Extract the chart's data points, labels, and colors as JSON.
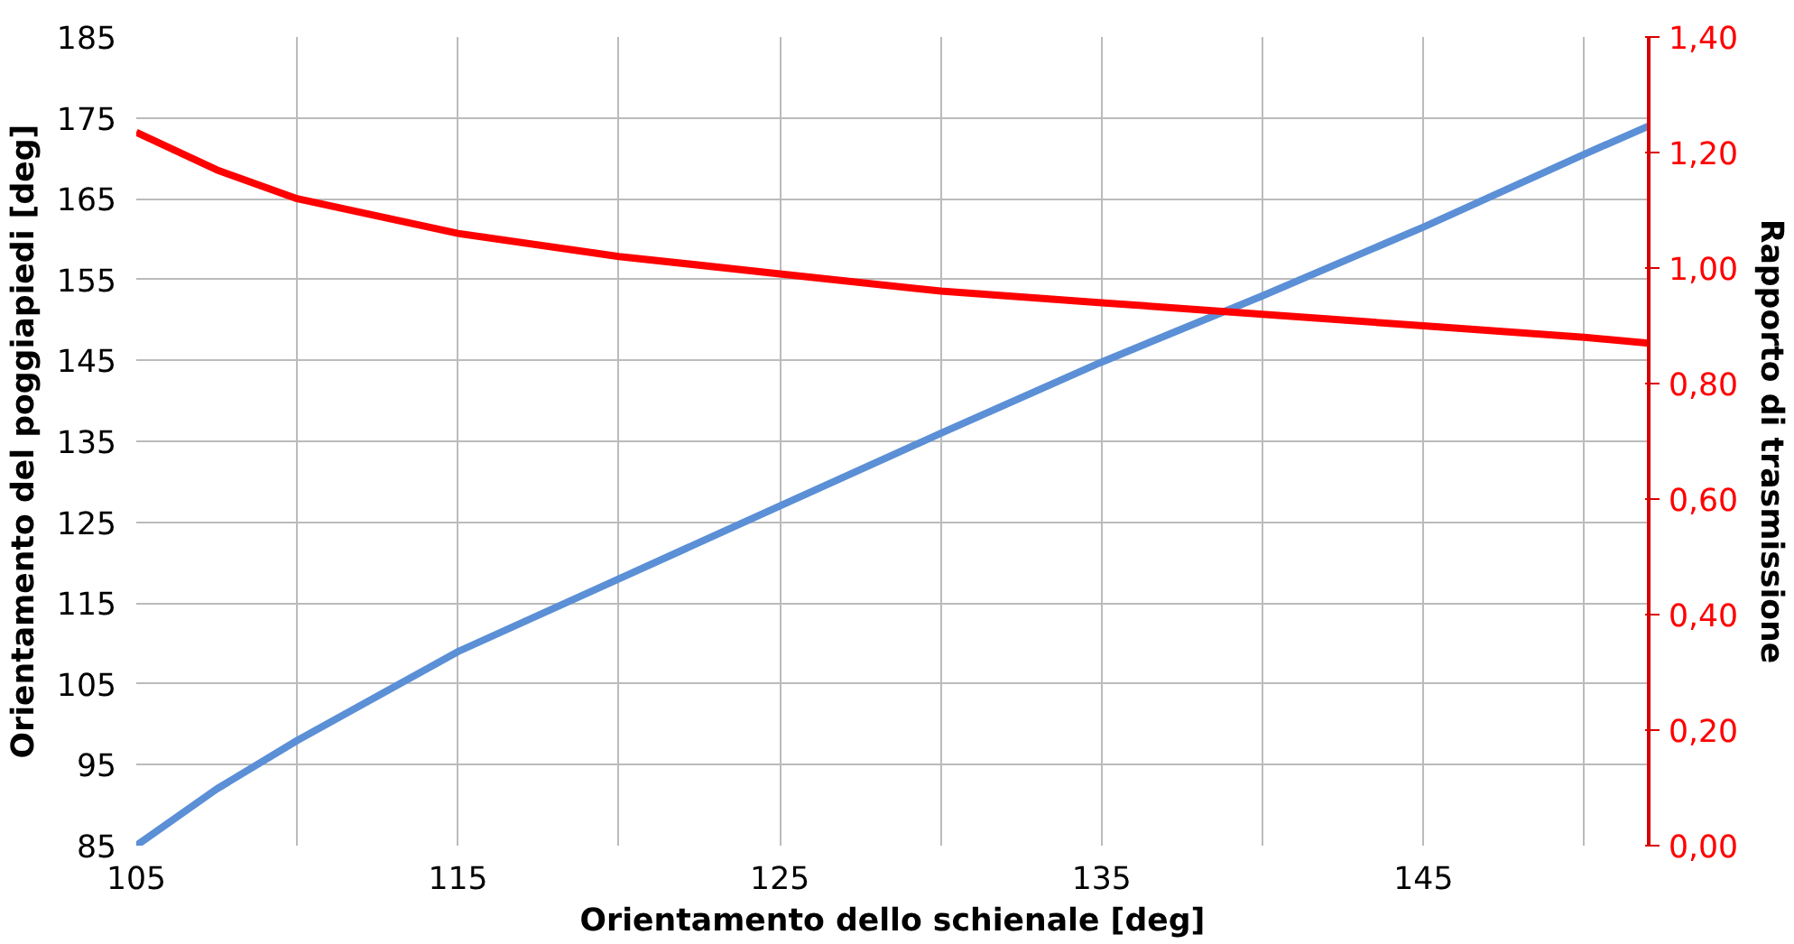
{
  "chart_data": {
    "type": "line",
    "xlabel": "Orientamento dello schienale [deg]",
    "ylabel": "Orientamento del poggiapiedi [deg]",
    "y2label": "Rapporto di trasmissione",
    "x": [
      105,
      107.5,
      110,
      115,
      120,
      125,
      130,
      135,
      140,
      145,
      150,
      152
    ],
    "series": [
      {
        "color": "#5b8fd6",
        "values": [
          85,
          92,
          98,
          109,
          118,
          127,
          136,
          144.8,
          153,
          161.5,
          170.5,
          174
        ]
      },
      {
        "color": "#ff0000",
        "axis": "y2",
        "values": [
          1.235,
          1.17,
          1.12,
          1.06,
          1.02,
          0.99,
          0.96,
          0.94,
          0.92,
          0.9,
          0.88,
          0.87
        ]
      }
    ],
    "xlim": [
      105,
      152
    ],
    "xticks": [
      105,
      {
        "value": 110,
        "label": null
      },
      115,
      {
        "value": 120,
        "label": null
      },
      125,
      {
        "value": 130,
        "label": null
      },
      135,
      {
        "value": 140,
        "label": null
      },
      145,
      {
        "value": 150,
        "label": null
      }
    ],
    "ylim": [
      85,
      185
    ],
    "yticks": [
      85,
      95,
      105,
      115,
      125,
      135,
      145,
      155,
      165,
      175,
      185
    ],
    "y2lim": [
      0,
      1.4
    ],
    "y2ticks": [
      {
        "value": 0,
        "label": "0,00"
      },
      {
        "value": 0.2,
        "label": "0,20"
      },
      {
        "value": 0.4,
        "label": "0,40"
      },
      {
        "value": 0.6,
        "label": "0,60"
      },
      {
        "value": 0.8,
        "label": "0,80"
      },
      {
        "value": 1.0,
        "label": "1,00"
      },
      {
        "value": 1.2,
        "label": "1,20"
      },
      {
        "value": 1.4,
        "label": "1,40"
      }
    ],
    "grid": true,
    "marker": "none",
    "line_style": "solid"
  }
}
